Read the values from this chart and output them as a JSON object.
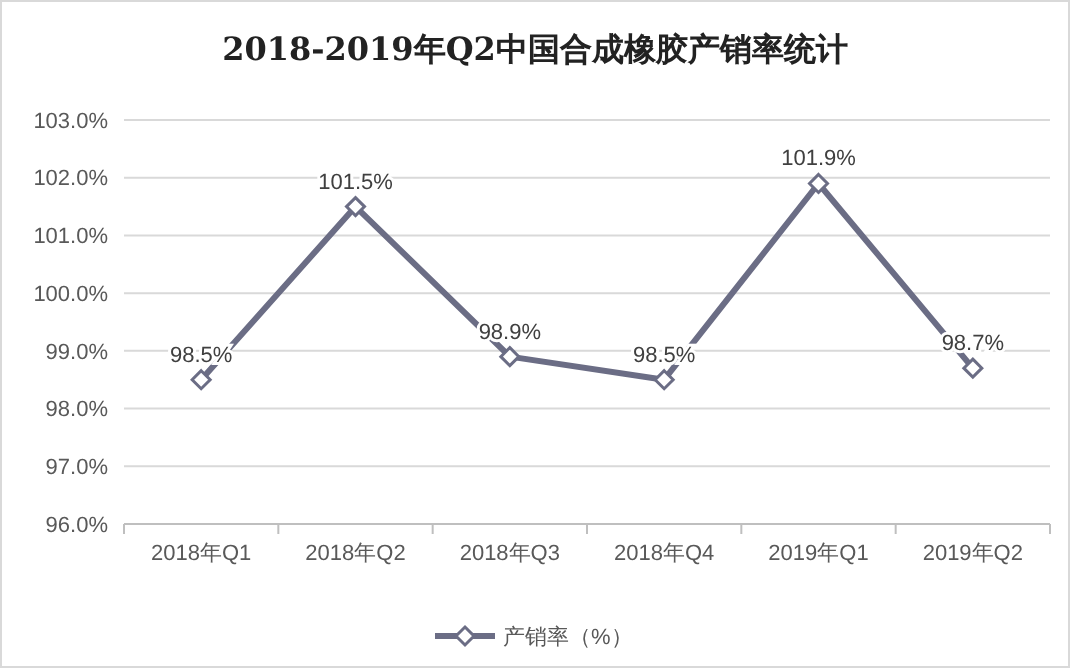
{
  "chart_data": {
    "type": "line",
    "title": "2018-2019年Q2中国合成橡胶产销率统计",
    "categories": [
      "2018年Q1",
      "2018年Q2",
      "2018年Q3",
      "2018年Q4",
      "2019年Q1",
      "2019年Q2"
    ],
    "series": [
      {
        "name": "产销率（%）",
        "color": "#6b6d85",
        "values": [
          98.5,
          101.5,
          98.9,
          98.5,
          101.9,
          98.7
        ]
      }
    ],
    "value_labels": [
      "98.5%",
      "101.5%",
      "98.9%",
      "98.5%",
      "101.9%",
      "98.7%"
    ],
    "ylim": [
      96,
      103
    ],
    "yticks": [
      {
        "value": 96,
        "label": "96.0%"
      },
      {
        "value": 97,
        "label": "97.0%"
      },
      {
        "value": 98,
        "label": "98.0%"
      },
      {
        "value": 99,
        "label": "99.0%"
      },
      {
        "value": 100,
        "label": "100.0%"
      },
      {
        "value": 101,
        "label": "101.0%"
      },
      {
        "value": 102,
        "label": "102.0%"
      },
      {
        "value": 103,
        "label": "103.0%"
      }
    ],
    "grid": "y",
    "legend": "bottom",
    "marker": "diamond",
    "line_style": "solid"
  }
}
